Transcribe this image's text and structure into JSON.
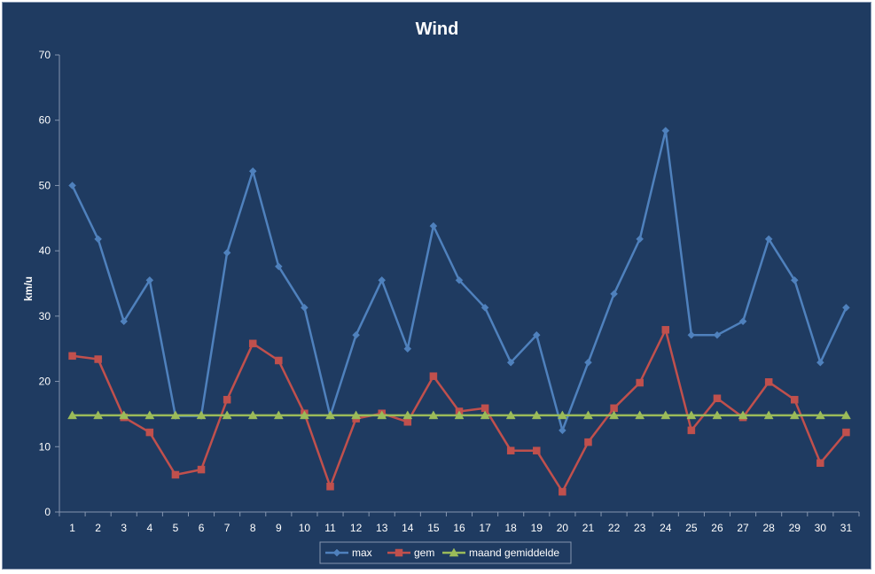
{
  "chart_data": {
    "type": "line",
    "title": "Wind",
    "xlabel": "",
    "ylabel": "km/u",
    "ylim": [
      0,
      70
    ],
    "yticks": [
      0,
      10,
      20,
      30,
      40,
      50,
      60,
      70
    ],
    "grid": false,
    "legend_position": "bottom",
    "categories": [
      "1",
      "2",
      "3",
      "4",
      "5",
      "6",
      "7",
      "8",
      "9",
      "10",
      "11",
      "12",
      "13",
      "14",
      "15",
      "16",
      "17",
      "18",
      "19",
      "20",
      "21",
      "22",
      "23",
      "24",
      "25",
      "26",
      "27",
      "28",
      "29",
      "30",
      "31"
    ],
    "series": [
      {
        "name": "max",
        "color": "#4f81bd",
        "marker": "diamond",
        "values": [
          50,
          41.8,
          29.2,
          35.5,
          14.7,
          14.7,
          39.7,
          52.2,
          37.6,
          31.3,
          14.7,
          27.1,
          35.5,
          25,
          43.8,
          35.5,
          31.3,
          22.9,
          27.1,
          12.5,
          22.9,
          33.4,
          41.8,
          58.4,
          27.1,
          27.1,
          29.2,
          41.8,
          35.5,
          22.9,
          31.3
        ]
      },
      {
        "name": "gem",
        "color": "#c0504d",
        "marker": "square",
        "values": [
          23.9,
          23.4,
          14.5,
          12.2,
          5.7,
          6.5,
          17.2,
          25.8,
          23.2,
          15.1,
          3.9,
          14.3,
          15.1,
          13.8,
          20.8,
          15.4,
          15.9,
          9.4,
          9.4,
          3.1,
          10.7,
          15.9,
          19.8,
          27.9,
          12.5,
          17.4,
          14.5,
          19.9,
          17.2,
          7.5,
          12.2
        ]
      },
      {
        "name": "maand gemiddelde",
        "color": "#9bbb59",
        "marker": "triangle",
        "values": [
          14.8,
          14.8,
          14.8,
          14.8,
          14.8,
          14.8,
          14.8,
          14.8,
          14.8,
          14.8,
          14.8,
          14.8,
          14.8,
          14.8,
          14.8,
          14.8,
          14.8,
          14.8,
          14.8,
          14.8,
          14.8,
          14.8,
          14.8,
          14.8,
          14.8,
          14.8,
          14.8,
          14.8,
          14.8,
          14.8,
          14.8
        ]
      }
    ]
  },
  "colors": {
    "background": "#1f3b61",
    "axis": "#8596b0",
    "text": "#ffffff"
  }
}
